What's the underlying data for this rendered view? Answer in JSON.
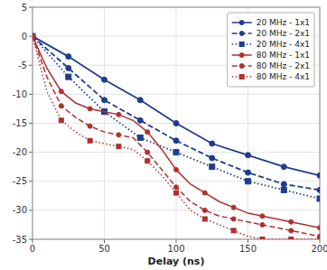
{
  "chart_data": {
    "type": "line",
    "xlabel": "Delay (ns)",
    "xlim": [
      0,
      200
    ],
    "xticks": [
      0,
      50,
      100,
      150,
      200
    ],
    "ylim": [
      -35,
      5
    ],
    "yticks": [
      5,
      0,
      -5,
      -10,
      -15,
      -20,
      -25,
      -30,
      -35
    ],
    "grid": true,
    "legend": "upper right",
    "series": [
      {
        "name": "20 MHz - 1x1",
        "color": "#1F3D8C",
        "line_style": "solid",
        "marker": "circle",
        "x": [
          0,
          25,
          50,
          75,
          100,
          125,
          150,
          175,
          200
        ],
        "values": [
          0,
          -3.5,
          -7.5,
          -11.0,
          -15.0,
          -18.5,
          -20.5,
          -22.5,
          -24.0
        ]
      },
      {
        "name": "20 MHz - 2x1",
        "color": "#1F3D8C",
        "line_style": "dashed",
        "marker": "circle",
        "x": [
          0,
          25,
          50,
          75,
          100,
          125,
          150,
          175,
          200
        ],
        "values": [
          0,
          -5.5,
          -11.0,
          -14.5,
          -18.0,
          -21.0,
          -23.5,
          -25.5,
          -26.5
        ]
      },
      {
        "name": "20 MHz - 4x1",
        "color": "#1F3D8C",
        "line_style": "dotted",
        "marker": "square",
        "x": [
          0,
          25,
          50,
          75,
          100,
          125,
          150,
          175,
          200
        ],
        "values": [
          0,
          -7.0,
          -13.0,
          -17.5,
          -20.0,
          -22.5,
          -25.0,
          -26.5,
          -28.0
        ]
      },
      {
        "name": "80 MHz - 1x1",
        "color": "#B03030",
        "line_style": "solid",
        "marker": "circle",
        "x": [
          0,
          10,
          20,
          30,
          40,
          50,
          60,
          70,
          80,
          90,
          100,
          110,
          120,
          130,
          140,
          150,
          160,
          170,
          180,
          190,
          200
        ],
        "values": [
          0,
          -5.5,
          -9.5,
          -11.5,
          -12.5,
          -13.0,
          -13.5,
          -14.5,
          -16.5,
          -19.5,
          -23.0,
          -25.5,
          -27.0,
          -28.5,
          -29.5,
          -30.5,
          -31.0,
          -31.5,
          -32.0,
          -32.5,
          -33.0
        ]
      },
      {
        "name": "80 MHz - 2x1",
        "color": "#B03030",
        "line_style": "dashed",
        "marker": "circle",
        "x": [
          0,
          10,
          20,
          30,
          40,
          50,
          60,
          70,
          80,
          90,
          100,
          110,
          120,
          130,
          140,
          150,
          160,
          170,
          180,
          190,
          200
        ],
        "values": [
          0,
          -7.0,
          -12.0,
          -14.0,
          -15.5,
          -16.5,
          -17.0,
          -17.5,
          -20.0,
          -23.0,
          -26.0,
          -28.5,
          -30.0,
          -31.0,
          -31.5,
          -32.0,
          -32.5,
          -33.0,
          -33.5,
          -34.0,
          -34.5
        ]
      },
      {
        "name": "80 MHz - 4x1",
        "color": "#B03030",
        "line_style": "dotted",
        "marker": "square",
        "x": [
          0,
          10,
          20,
          30,
          40,
          50,
          60,
          70,
          80,
          90,
          100,
          110,
          120,
          130,
          140,
          150,
          160,
          170,
          180,
          190,
          200
        ],
        "values": [
          0,
          -9.5,
          -14.5,
          -16.5,
          -18.0,
          -18.5,
          -19.0,
          -19.5,
          -21.5,
          -24.0,
          -27.0,
          -30.0,
          -31.5,
          -32.5,
          -33.5,
          -34.5,
          -35.0,
          -35.0,
          -35.0,
          -35.0,
          -35.0
        ]
      }
    ]
  }
}
